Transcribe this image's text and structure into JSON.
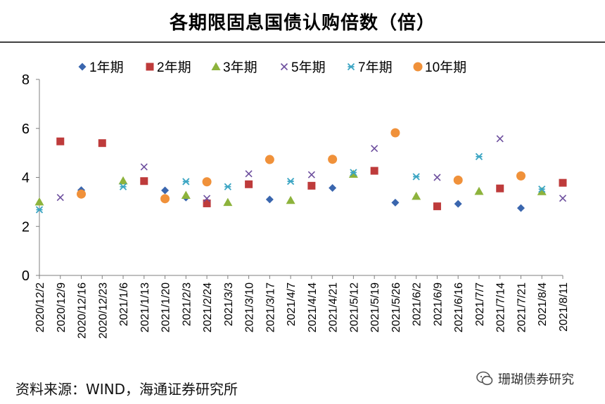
{
  "header": {
    "title": "各期限固息国债认购倍数（倍）"
  },
  "footer": {
    "source": "资料来源：WIND，海通证券研究所",
    "watermark": "珊瑚债券研究"
  },
  "colors": {
    "s1": "#3A66AE",
    "s2": "#BE3B3B",
    "s3": "#8DB33C",
    "s5": "#6D4F9E",
    "s7": "#3BA5C3",
    "s10": "#F0913A",
    "axis": "#7F7F7F"
  },
  "chart_data": {
    "type": "scatter",
    "title": "各期限固息国债认购倍数（倍）",
    "xlabel": "",
    "ylabel": "",
    "ylim": [
      0,
      8
    ],
    "yticks": [
      "0",
      "2",
      "4",
      "6",
      "8"
    ],
    "grid": false,
    "legend_position": "top",
    "categories": [
      "2020/12/2",
      "2020/12/9",
      "2020/12/16",
      "2020/12/23",
      "2021/1/6",
      "2021/1/13",
      "2021/1/20",
      "2021/2/3",
      "2021/2/24",
      "2021/3/3",
      "2021/3/10",
      "2021/3/17",
      "2021/4/7",
      "2021/4/14",
      "2021/4/21",
      "2021/5/12",
      "2021/5/19",
      "2021/5/26",
      "2021/6/2",
      "2021/6/9",
      "2021/6/16",
      "2021/7/7",
      "2021/7/14",
      "2021/7/21",
      "2021/8/4",
      "2021/8/11"
    ],
    "series": [
      {
        "key": "s1",
        "name": "1年期",
        "marker": "diamond",
        "values": [
          null,
          null,
          3.48,
          null,
          null,
          null,
          3.47,
          3.18,
          null,
          null,
          null,
          3.1,
          null,
          null,
          3.57,
          null,
          null,
          2.97,
          null,
          null,
          2.92,
          null,
          null,
          2.75,
          null,
          null
        ]
      },
      {
        "key": "s2",
        "name": "2年期",
        "marker": "square",
        "values": [
          null,
          5.47,
          null,
          5.4,
          null,
          3.85,
          null,
          null,
          2.94,
          null,
          3.72,
          null,
          null,
          3.66,
          null,
          null,
          4.27,
          null,
          null,
          2.82,
          null,
          null,
          3.55,
          null,
          null,
          3.78
        ]
      },
      {
        "key": "s3",
        "name": "3年期",
        "marker": "triangle",
        "values": [
          3.0,
          null,
          null,
          null,
          3.86,
          null,
          null,
          3.27,
          null,
          2.98,
          null,
          null,
          3.06,
          null,
          null,
          4.13,
          null,
          null,
          3.23,
          null,
          null,
          3.43,
          null,
          null,
          3.42,
          null
        ]
      },
      {
        "key": "s5",
        "name": "5年期",
        "marker": "x",
        "values": [
          null,
          3.18,
          null,
          null,
          null,
          4.43,
          null,
          null,
          3.14,
          null,
          4.15,
          null,
          null,
          4.11,
          null,
          null,
          5.18,
          null,
          null,
          4.0,
          null,
          null,
          5.58,
          null,
          null,
          3.15
        ]
      },
      {
        "key": "s7",
        "name": "7年期",
        "marker": "asterisk",
        "values": [
          2.68,
          null,
          null,
          null,
          3.62,
          null,
          null,
          3.83,
          null,
          3.62,
          null,
          null,
          3.84,
          null,
          null,
          4.2,
          null,
          null,
          4.03,
          null,
          null,
          4.85,
          null,
          null,
          3.52,
          null
        ]
      },
      {
        "key": "s10",
        "name": "10年期",
        "marker": "circle",
        "values": [
          null,
          null,
          3.32,
          null,
          null,
          null,
          3.13,
          null,
          3.82,
          null,
          null,
          4.73,
          null,
          null,
          4.74,
          null,
          null,
          5.82,
          null,
          null,
          3.89,
          null,
          null,
          4.06,
          null,
          null
        ]
      }
    ]
  }
}
